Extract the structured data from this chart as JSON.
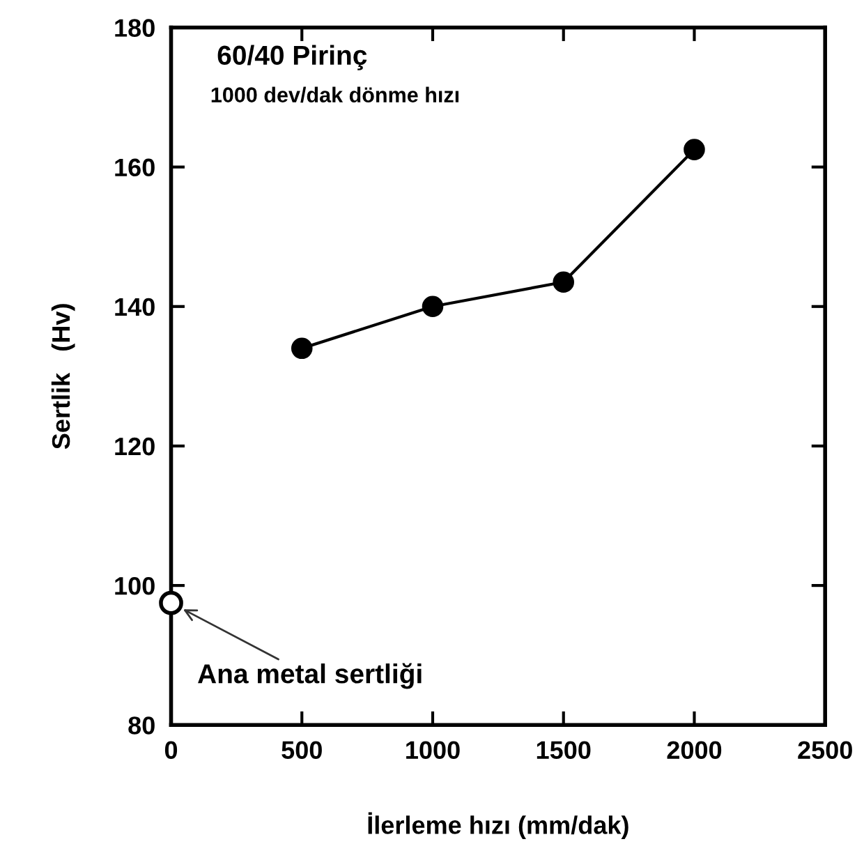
{
  "chart_data": {
    "type": "line",
    "title": "60/40 Pirinç",
    "subtitle": "1000 dev/dak dönme hızı",
    "xlabel": "İlerleme hızı (mm/dak)",
    "ylabel": "Sertlik   (Hv)",
    "series": [
      {
        "color": "#000000",
        "x": [
          500,
          1000,
          1500,
          2000
        ],
        "values": [
          134,
          140,
          143.5,
          162.5
        ],
        "marker": "circle"
      },
      {
        "type": "scatter",
        "color": "#000000",
        "x": [
          0
        ],
        "values": [
          97.5
        ],
        "marker": "circle"
      }
    ],
    "annotations": [
      {
        "text": "Ana metal sertliği",
        "x": 0,
        "y": 97.5
      }
    ],
    "xlim": [
      0,
      2500
    ],
    "xticks": [
      0,
      500,
      1000,
      1500,
      2000,
      2500
    ],
    "ylim": [
      80,
      180
    ],
    "yticks": [
      80,
      100,
      120,
      140,
      160,
      180
    ],
    "grid": false,
    "line_style": "solid"
  }
}
